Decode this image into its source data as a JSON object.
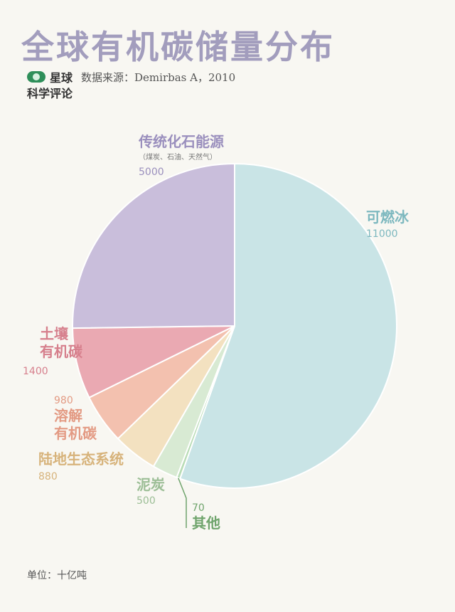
{
  "title": "全球有机碳储量分布",
  "brand": {
    "line1": "星球",
    "line2": "科学评论"
  },
  "source": "数据来源：Demirbas A，2010",
  "unit": "单位：十亿吨",
  "colors": {
    "title": "#a29dbd"
  },
  "chart_data": {
    "type": "pie",
    "title": "全球有机碳储量分布",
    "unit": "十亿吨",
    "slices": [
      {
        "label": "可燃冰",
        "value": 11000,
        "color": "#c9e4e6",
        "text_color": "#7db8bf"
      },
      {
        "label": "其他",
        "value": 70,
        "color": "#b8dcb5",
        "text_color": "#6fa46c"
      },
      {
        "label": "泥炭",
        "value": 500,
        "color": "#d8ead3",
        "text_color": "#9cbe96"
      },
      {
        "label": "陆地生态系统",
        "value": 880,
        "color": "#f3e1c0",
        "text_color": "#d7b37b"
      },
      {
        "label": "溶解有机碳",
        "value": 980,
        "color": "#f3c1af",
        "text_color": "#e39a83"
      },
      {
        "label": "土壤有机碳",
        "value": 1400,
        "color": "#eaa9b2",
        "text_color": "#d67f8c"
      },
      {
        "label": "传统化石能源",
        "sublabel": "（煤炭、石油、天然气）",
        "value": 5000,
        "color": "#c9bedb",
        "text_color": "#9a8fbd"
      }
    ]
  }
}
